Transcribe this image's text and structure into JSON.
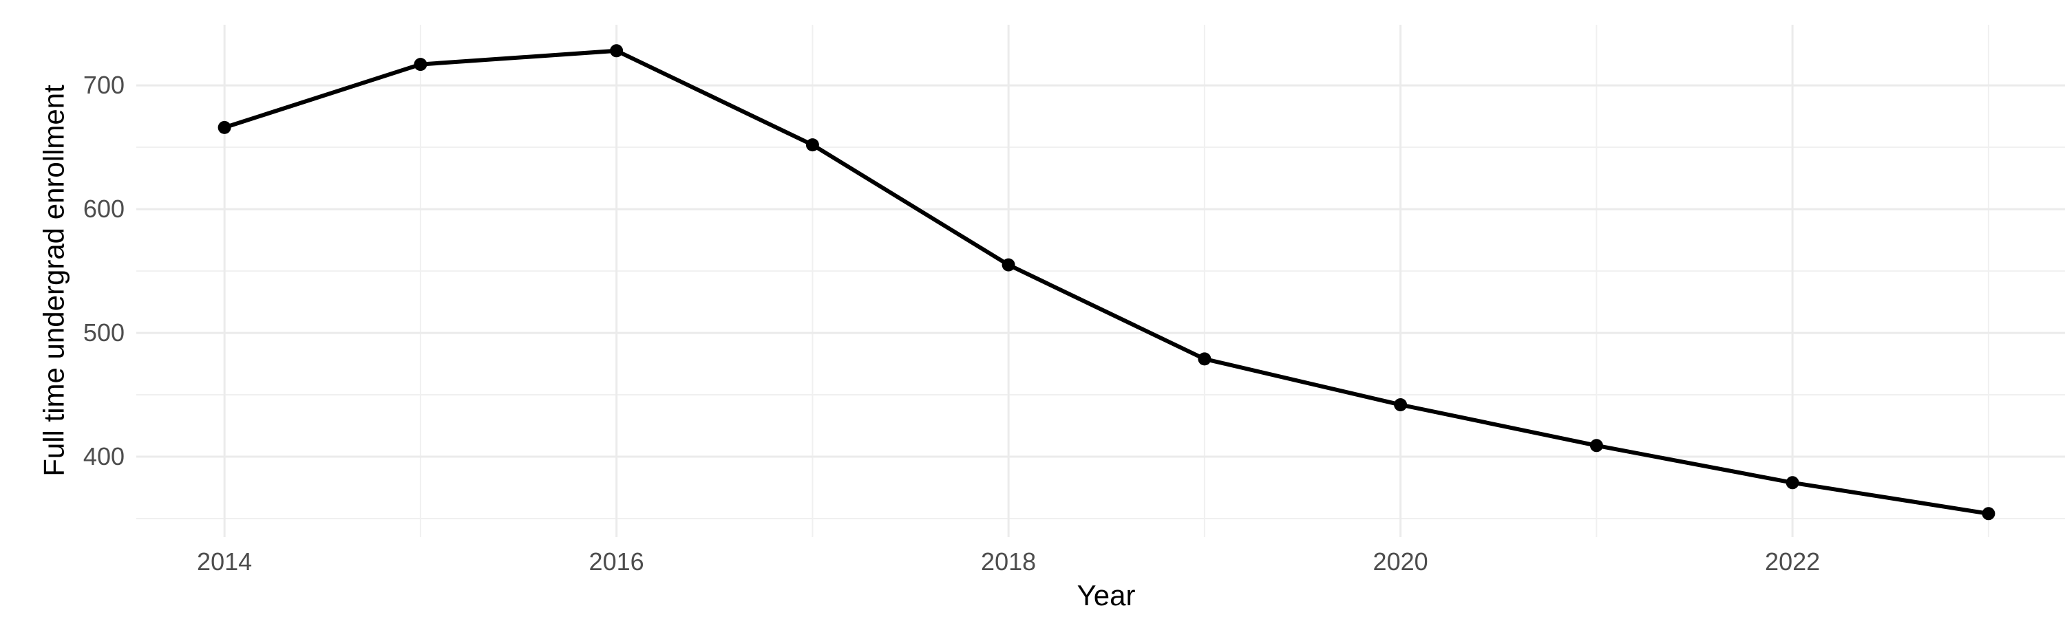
{
  "chart_data": {
    "type": "line",
    "xlabel": "Year",
    "ylabel": "Full time undergrad enrollment",
    "x": [
      2014,
      2015,
      2016,
      2017,
      2018,
      2019,
      2020,
      2021,
      2022,
      2023
    ],
    "values": [
      666,
      717,
      728,
      652,
      555,
      479,
      442,
      409,
      379,
      354
    ],
    "x_major_ticks": [
      2014,
      2016,
      2018,
      2020,
      2022
    ],
    "x_minor_gridlines": [
      2015,
      2017,
      2019,
      2021,
      2023
    ],
    "y_major_ticks": [
      700,
      600,
      500,
      400
    ],
    "y_minor_gridlines": [
      650,
      550,
      450,
      350
    ],
    "xlim": [
      2013.55,
      2023.45
    ],
    "ylim": [
      335,
      749
    ],
    "grid": "major+minor",
    "legend": false,
    "marker": "filled-circle",
    "colors": {
      "line": "#000000",
      "point": "#000000",
      "grid_major": "#ebebeb",
      "grid_minor": "#f0f0f0",
      "tick_label": "#4d4d4d",
      "axis_title": "#000000",
      "background": "#ffffff"
    }
  }
}
